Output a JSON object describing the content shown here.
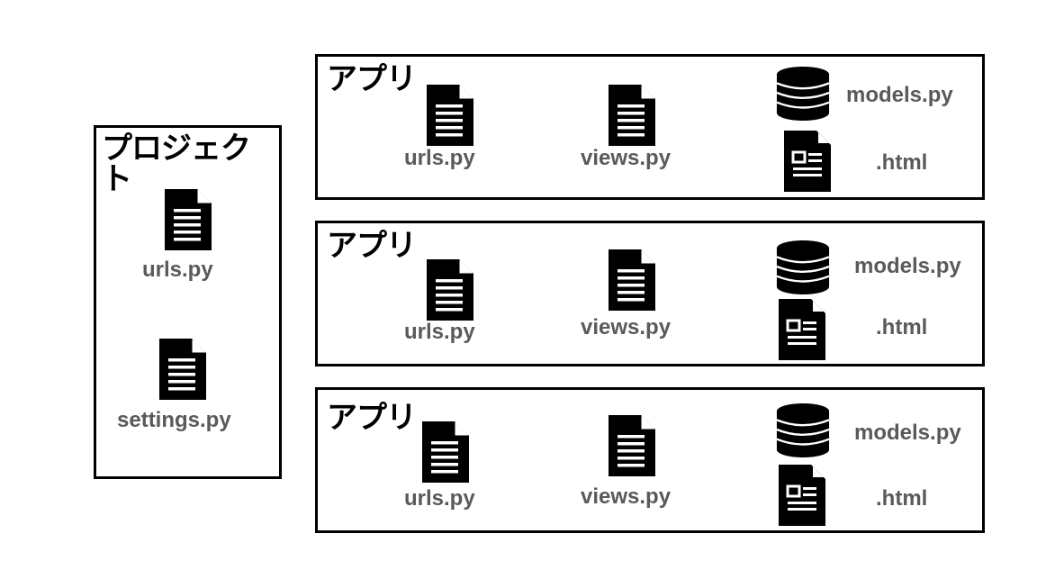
{
  "project": {
    "title": "プロジェクト",
    "files": [
      {
        "label": "urls.py",
        "icon": "document-lines-icon"
      },
      {
        "label": "settings.py",
        "icon": "document-lines-icon"
      }
    ]
  },
  "apps": [
    {
      "title": "アプリ",
      "urls_label": "urls.py",
      "views_label": "views.py",
      "models_label": "models.py",
      "html_label": ".html"
    },
    {
      "title": "アプリ",
      "urls_label": "urls.py",
      "views_label": "views.py",
      "models_label": "models.py",
      "html_label": ".html"
    },
    {
      "title": "アプリ",
      "urls_label": "urls.py",
      "views_label": "views.py",
      "models_label": "models.py",
      "html_label": ".html"
    }
  ],
  "icons": {
    "python_file": "document-lines-icon",
    "model": "database-icon",
    "template": "html-template-icon"
  },
  "colors": {
    "stroke": "#000000",
    "label": "#5a5a5a"
  }
}
